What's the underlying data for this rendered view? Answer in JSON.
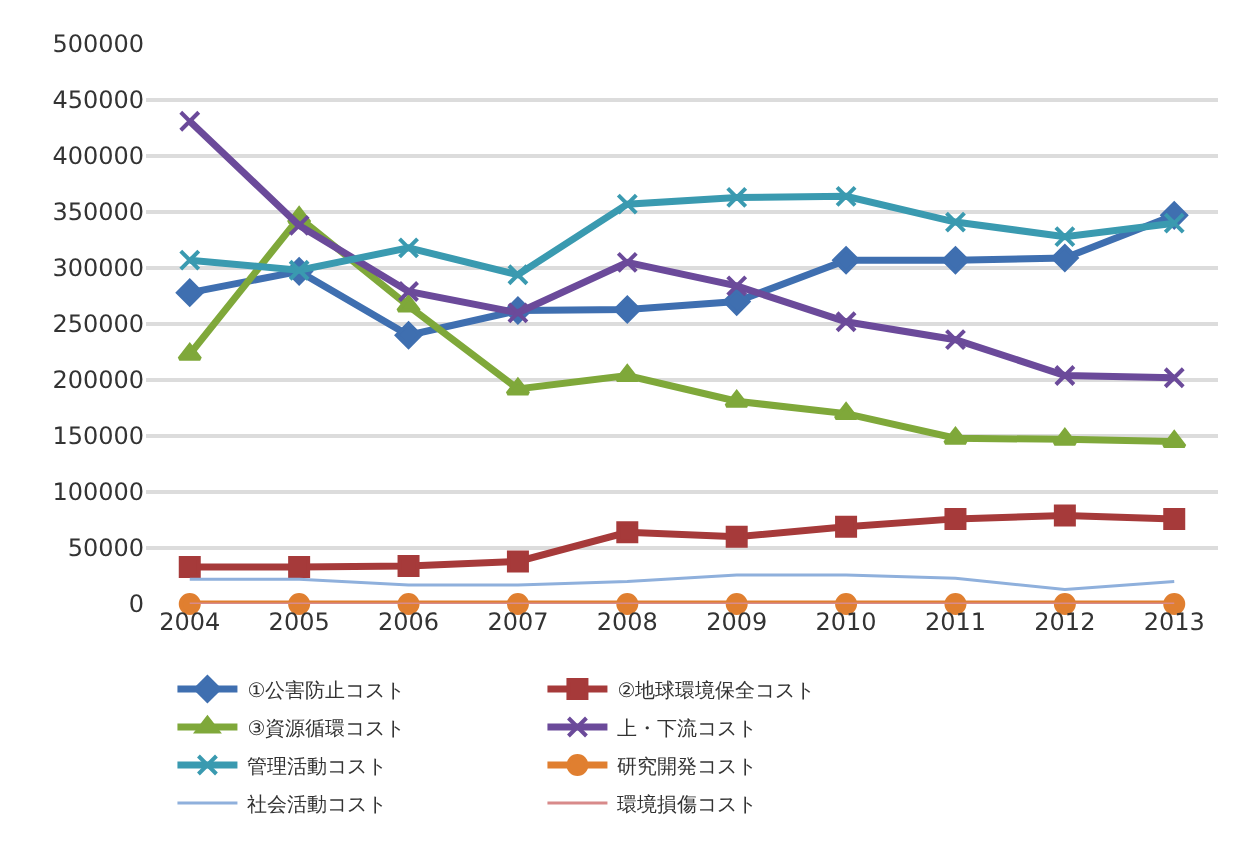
{
  "chart_data": {
    "type": "line",
    "categories": [
      "2004",
      "2005",
      "2006",
      "2007",
      "2008",
      "2009",
      "2010",
      "2011",
      "2012",
      "2013"
    ],
    "series": [
      {
        "name": "①公害防止コスト",
        "color": "#3f6fb0",
        "marker": "diamond",
        "values": [
          278000,
          297000,
          240000,
          262000,
          263000,
          270000,
          307000,
          307000,
          309000,
          347000
        ]
      },
      {
        "name": "②地球環境保全コスト",
        "color": "#a63a3a",
        "marker": "square",
        "values": [
          33000,
          33000,
          34000,
          38000,
          64000,
          60000,
          69000,
          76000,
          79000,
          76000
        ]
      },
      {
        "name": "③資源循環コスト",
        "color": "#7fa83a",
        "marker": "triangle",
        "values": [
          223000,
          345000,
          266000,
          192000,
          204000,
          181000,
          170000,
          148000,
          147000,
          145000
        ]
      },
      {
        "name": "上・下流コスト",
        "color": "#6b4a9a",
        "marker": "cross",
        "values": [
          431000,
          338000,
          279000,
          260000,
          305000,
          284000,
          252000,
          236000,
          204000,
          202000
        ]
      },
      {
        "name": "管理活動コスト",
        "color": "#3a9ab0",
        "marker": "cross",
        "values": [
          307000,
          298000,
          318000,
          294000,
          357000,
          363000,
          364000,
          341000,
          328000,
          340000
        ]
      },
      {
        "name": "研究開発コスト",
        "color": "#e07f30",
        "marker": "circle",
        "values": [
          0,
          0,
          0,
          0,
          0,
          0,
          0,
          0,
          0,
          0
        ]
      },
      {
        "name": "社会活動コスト",
        "color": "#8fb0dc",
        "marker": "none",
        "values": [
          22000,
          22000,
          17000,
          17000,
          20000,
          26000,
          26000,
          23000,
          13000,
          20000
        ]
      },
      {
        "name": "環境損傷コスト",
        "color": "#d88a8a",
        "marker": "none",
        "values": [
          0,
          0,
          0,
          0,
          0,
          0,
          0,
          0,
          0,
          0
        ]
      }
    ],
    "ylim": [
      0,
      500000
    ],
    "yticks": [
      0,
      50000,
      100000,
      150000,
      200000,
      250000,
      300000,
      350000,
      400000,
      450000,
      500000
    ],
    "grid": "y",
    "legend": "bottom",
    "line_style": "solid"
  }
}
